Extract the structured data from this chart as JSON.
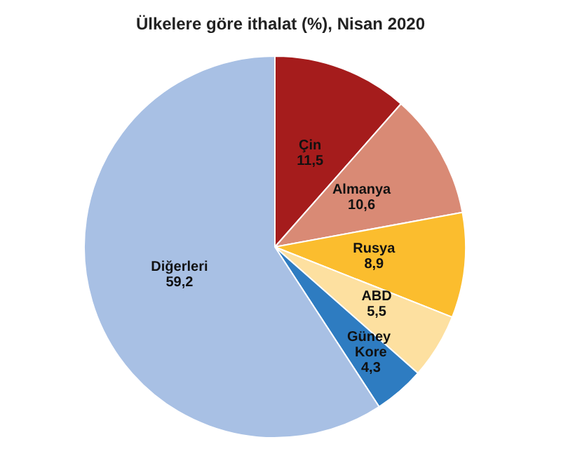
{
  "chart_data": {
    "type": "pie",
    "title": "Ülkelere göre ithalat (%), Nisan 2020",
    "categories": [
      "Çin",
      "Almanya",
      "Rusya",
      "ABD",
      "Güney Kore",
      "Diğerleri"
    ],
    "values": [
      11.5,
      10.6,
      8.9,
      5.5,
      4.3,
      59.2
    ],
    "value_labels": [
      "11,5",
      "10,6",
      "8,9",
      "5,5",
      "4,3",
      "59,2"
    ],
    "colors": [
      "#a51c1c",
      "#d98a75",
      "#fbbd2e",
      "#fde0a0",
      "#2e7cc1",
      "#a8c0e4"
    ]
  }
}
